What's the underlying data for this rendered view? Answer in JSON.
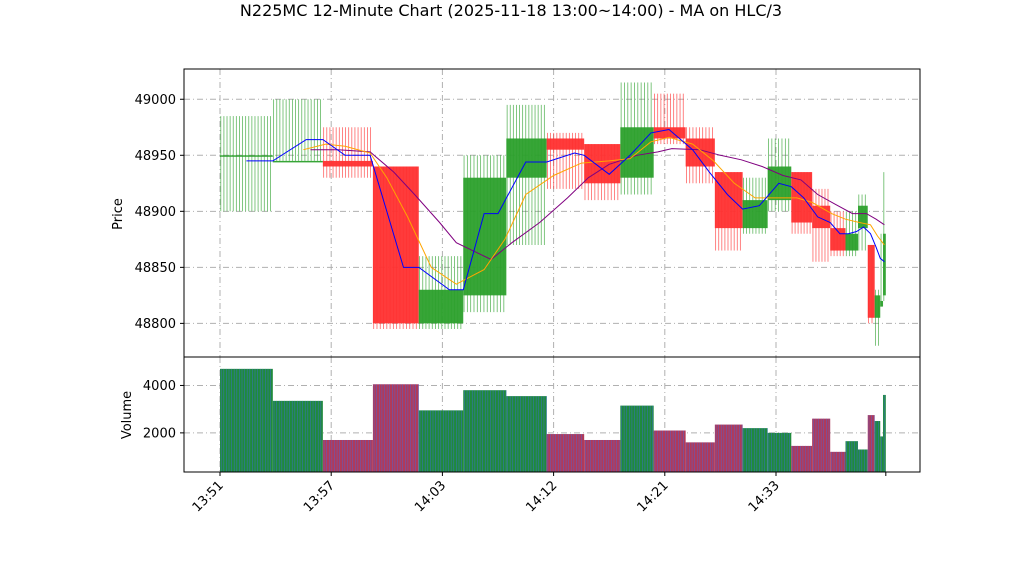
{
  "chart_data": {
    "type": "candlestick",
    "title": "N225MC 12-Minute Chart (2025-11-18 13:00~14:00) - MA on HLC/3",
    "price_panel": {
      "ylabel": "Price",
      "ylim": [
        48770,
        49027
      ],
      "yticks": [
        48800,
        48850,
        48900,
        48950,
        49000
      ],
      "grid": true
    },
    "volume_panel": {
      "ylabel": "Volume",
      "ylim": [
        350,
        5200
      ],
      "yticks": [
        2000,
        4000
      ],
      "grid": true
    },
    "x_tick_labels": [
      "13:51",
      "13:57",
      "14:03",
      "14:12",
      "14:21",
      "14:33"
    ],
    "x_tick_positions": [
      0,
      8,
      16,
      24,
      32,
      40
    ],
    "colors": {
      "up": "#2ca02c",
      "down": "#ff3030",
      "ma_short": "#0000ff",
      "ma_mid": "#ffa500",
      "ma_long": "#800080",
      "grid": "#b0b0b0",
      "volume_edge": "#4169e1"
    },
    "candles": [
      {
        "x": 0.0,
        "w": 3.8,
        "o": 48950,
        "h": 48985,
        "l": 48900,
        "c": 48950,
        "vol": 4700
      },
      {
        "x": 3.8,
        "w": 3.6,
        "o": 48945,
        "h": 49000,
        "l": 48945,
        "c": 48945,
        "vol": 3350
      },
      {
        "x": 7.4,
        "w": 3.6,
        "o": 48945,
        "h": 48975,
        "l": 48930,
        "c": 48940,
        "vol": 1700
      },
      {
        "x": 11.0,
        "w": 3.3,
        "o": 48940,
        "h": 48940,
        "l": 48795,
        "c": 48800,
        "vol": 4050
      },
      {
        "x": 14.3,
        "w": 3.2,
        "o": 48800,
        "h": 48860,
        "l": 48795,
        "c": 48830,
        "vol": 2950
      },
      {
        "x": 17.5,
        "w": 3.1,
        "o": 48825,
        "h": 48950,
        "l": 48810,
        "c": 48930,
        "vol": 3800
      },
      {
        "x": 20.6,
        "w": 2.9,
        "o": 48930,
        "h": 48995,
        "l": 48870,
        "c": 48965,
        "vol": 3550
      },
      {
        "x": 23.5,
        "w": 2.7,
        "o": 48965,
        "h": 48970,
        "l": 48920,
        "c": 48955,
        "vol": 1950
      },
      {
        "x": 26.2,
        "w": 2.6,
        "o": 48960,
        "h": 48960,
        "l": 48910,
        "c": 48925,
        "vol": 1700
      },
      {
        "x": 28.8,
        "w": 2.4,
        "o": 48930,
        "h": 49015,
        "l": 48915,
        "c": 48975,
        "vol": 3150
      },
      {
        "x": 31.2,
        "w": 2.3,
        "o": 48975,
        "h": 49005,
        "l": 48960,
        "c": 48965,
        "vol": 2100
      },
      {
        "x": 33.5,
        "w": 2.1,
        "o": 48965,
        "h": 48975,
        "l": 48925,
        "c": 48940,
        "vol": 1600
      },
      {
        "x": 35.6,
        "w": 2.0,
        "o": 48935,
        "h": 48935,
        "l": 48865,
        "c": 48885,
        "vol": 2350
      },
      {
        "x": 37.6,
        "w": 1.8,
        "o": 48885,
        "h": 48930,
        "l": 48880,
        "c": 48910,
        "vol": 2200
      },
      {
        "x": 39.4,
        "w": 1.7,
        "o": 48910,
        "h": 48965,
        "l": 48900,
        "c": 48940,
        "vol": 2000
      },
      {
        "x": 41.1,
        "w": 1.5,
        "o": 48935,
        "h": 48935,
        "l": 48880,
        "c": 48890,
        "vol": 1450
      },
      {
        "x": 42.6,
        "w": 1.3,
        "o": 48905,
        "h": 48920,
        "l": 48855,
        "c": 48885,
        "vol": 2600
      },
      {
        "x": 43.9,
        "w": 1.1,
        "o": 48885,
        "h": 48900,
        "l": 48860,
        "c": 48865,
        "vol": 1200
      },
      {
        "x": 45.0,
        "w": 0.9,
        "o": 48865,
        "h": 48900,
        "l": 48860,
        "c": 48880,
        "vol": 1650
      },
      {
        "x": 45.9,
        "w": 0.7,
        "o": 48885,
        "h": 48915,
        "l": 48865,
        "c": 48905,
        "vol": 1300
      },
      {
        "x": 46.6,
        "w": 0.5,
        "o": 48870,
        "h": 48870,
        "l": 48800,
        "c": 48805,
        "vol": 2750
      },
      {
        "x": 47.1,
        "w": 0.4,
        "o": 48805,
        "h": 48830,
        "l": 48780,
        "c": 48825,
        "vol": 2500
      },
      {
        "x": 47.5,
        "w": 0.2,
        "o": 48815,
        "h": 48880,
        "l": 48815,
        "c": 48820,
        "vol": 1850
      },
      {
        "x": 47.7,
        "w": 0.2,
        "o": 48825,
        "h": 48935,
        "l": 48820,
        "c": 48880,
        "vol": 3600
      }
    ],
    "ma_short": [
      [
        1.9,
        48945
      ],
      [
        3.8,
        48945
      ],
      [
        6.2,
        48964
      ],
      [
        7.4,
        48964
      ],
      [
        9.0,
        48950
      ],
      [
        10.8,
        48950
      ],
      [
        13.2,
        48850
      ],
      [
        14.3,
        48850
      ],
      [
        16.5,
        48830
      ],
      [
        17.5,
        48830
      ],
      [
        19.0,
        48898
      ],
      [
        20.0,
        48898
      ],
      [
        22.0,
        48944
      ],
      [
        23.5,
        48944
      ],
      [
        25.5,
        48952
      ],
      [
        26.2,
        48950
      ],
      [
        28.0,
        48933
      ],
      [
        29.5,
        48950
      ],
      [
        31.0,
        48970
      ],
      [
        32.3,
        48973
      ],
      [
        34.0,
        48955
      ],
      [
        35.2,
        48935
      ],
      [
        36.5,
        48915
      ],
      [
        37.6,
        48902
      ],
      [
        38.8,
        48905
      ],
      [
        40.2,
        48925
      ],
      [
        41.1,
        48922
      ],
      [
        42.0,
        48912
      ],
      [
        43.0,
        48895
      ],
      [
        43.9,
        48890
      ],
      [
        44.6,
        48880
      ],
      [
        45.2,
        48880
      ],
      [
        45.8,
        48882
      ],
      [
        46.3,
        48886
      ],
      [
        46.8,
        48880
      ],
      [
        47.2,
        48868
      ],
      [
        47.5,
        48858
      ],
      [
        47.8,
        48855
      ]
    ],
    "ma_mid": [
      [
        6.0,
        48955
      ],
      [
        7.6,
        48960
      ],
      [
        9.0,
        48958
      ],
      [
        10.8,
        48952
      ],
      [
        12.0,
        48930
      ],
      [
        13.5,
        48895
      ],
      [
        15.2,
        48850
      ],
      [
        17.0,
        48835
      ],
      [
        19.0,
        48848
      ],
      [
        20.5,
        48875
      ],
      [
        22.0,
        48915
      ],
      [
        24.0,
        48932
      ],
      [
        26.0,
        48943
      ],
      [
        28.0,
        48945
      ],
      [
        29.5,
        48947
      ],
      [
        31.0,
        48962
      ],
      [
        32.3,
        48966
      ],
      [
        34.0,
        48960
      ],
      [
        35.5,
        48945
      ],
      [
        37.0,
        48925
      ],
      [
        38.5,
        48912
      ],
      [
        40.0,
        48912
      ],
      [
        41.5,
        48912
      ],
      [
        42.6,
        48908
      ],
      [
        44.0,
        48898
      ],
      [
        45.0,
        48893
      ],
      [
        46.0,
        48890
      ],
      [
        46.8,
        48888
      ],
      [
        47.3,
        48878
      ],
      [
        47.8,
        48870
      ]
    ],
    "ma_long": [
      [
        6.5,
        48955
      ],
      [
        8.5,
        48955
      ],
      [
        10.8,
        48953
      ],
      [
        12.5,
        48935
      ],
      [
        14.0,
        48915
      ],
      [
        15.8,
        48890
      ],
      [
        17.0,
        48872
      ],
      [
        19.5,
        48857
      ],
      [
        21.0,
        48872
      ],
      [
        23.0,
        48890
      ],
      [
        25.0,
        48912
      ],
      [
        26.5,
        48930
      ],
      [
        28.0,
        48942
      ],
      [
        30.0,
        48950
      ],
      [
        31.5,
        48953
      ],
      [
        32.5,
        48956
      ],
      [
        34.5,
        48955
      ],
      [
        36.0,
        48950
      ],
      [
        37.5,
        48946
      ],
      [
        39.0,
        48940
      ],
      [
        40.5,
        48932
      ],
      [
        41.8,
        48928
      ],
      [
        43.0,
        48915
      ],
      [
        44.3,
        48906
      ],
      [
        45.5,
        48898
      ],
      [
        46.5,
        48898
      ],
      [
        47.2,
        48893
      ],
      [
        47.8,
        48888
      ]
    ]
  }
}
